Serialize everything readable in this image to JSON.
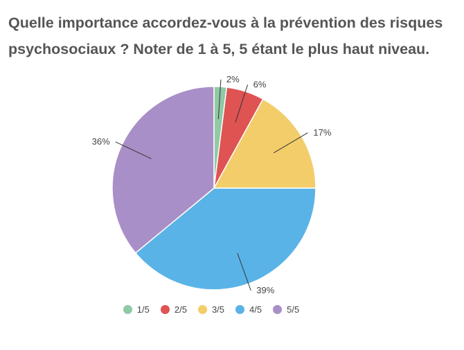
{
  "title": "Quelle importance accordez-vous à la prévention des risques psychosociaux ? Noter de 1 à 5, 5 étant le plus haut niveau.",
  "chart_data": {
    "type": "pie",
    "title": "Quelle importance accordez-vous à la prévention des risques psychosociaux ? Noter de 1 à 5, 5 étant le plus haut niveau.",
    "legend_position": "bottom",
    "slices": [
      {
        "name": "1/5",
        "value": 2,
        "label": "2%",
        "color": "#8fc9a5"
      },
      {
        "name": "2/5",
        "value": 6,
        "label": "6%",
        "color": "#df5353"
      },
      {
        "name": "3/5",
        "value": 17,
        "label": "17%",
        "color": "#f2cd6a"
      },
      {
        "name": "4/5",
        "value": 39,
        "label": "39%",
        "color": "#5ab3e6"
      },
      {
        "name": "5/5",
        "value": 36,
        "label": "36%",
        "color": "#a98fc7"
      }
    ]
  }
}
